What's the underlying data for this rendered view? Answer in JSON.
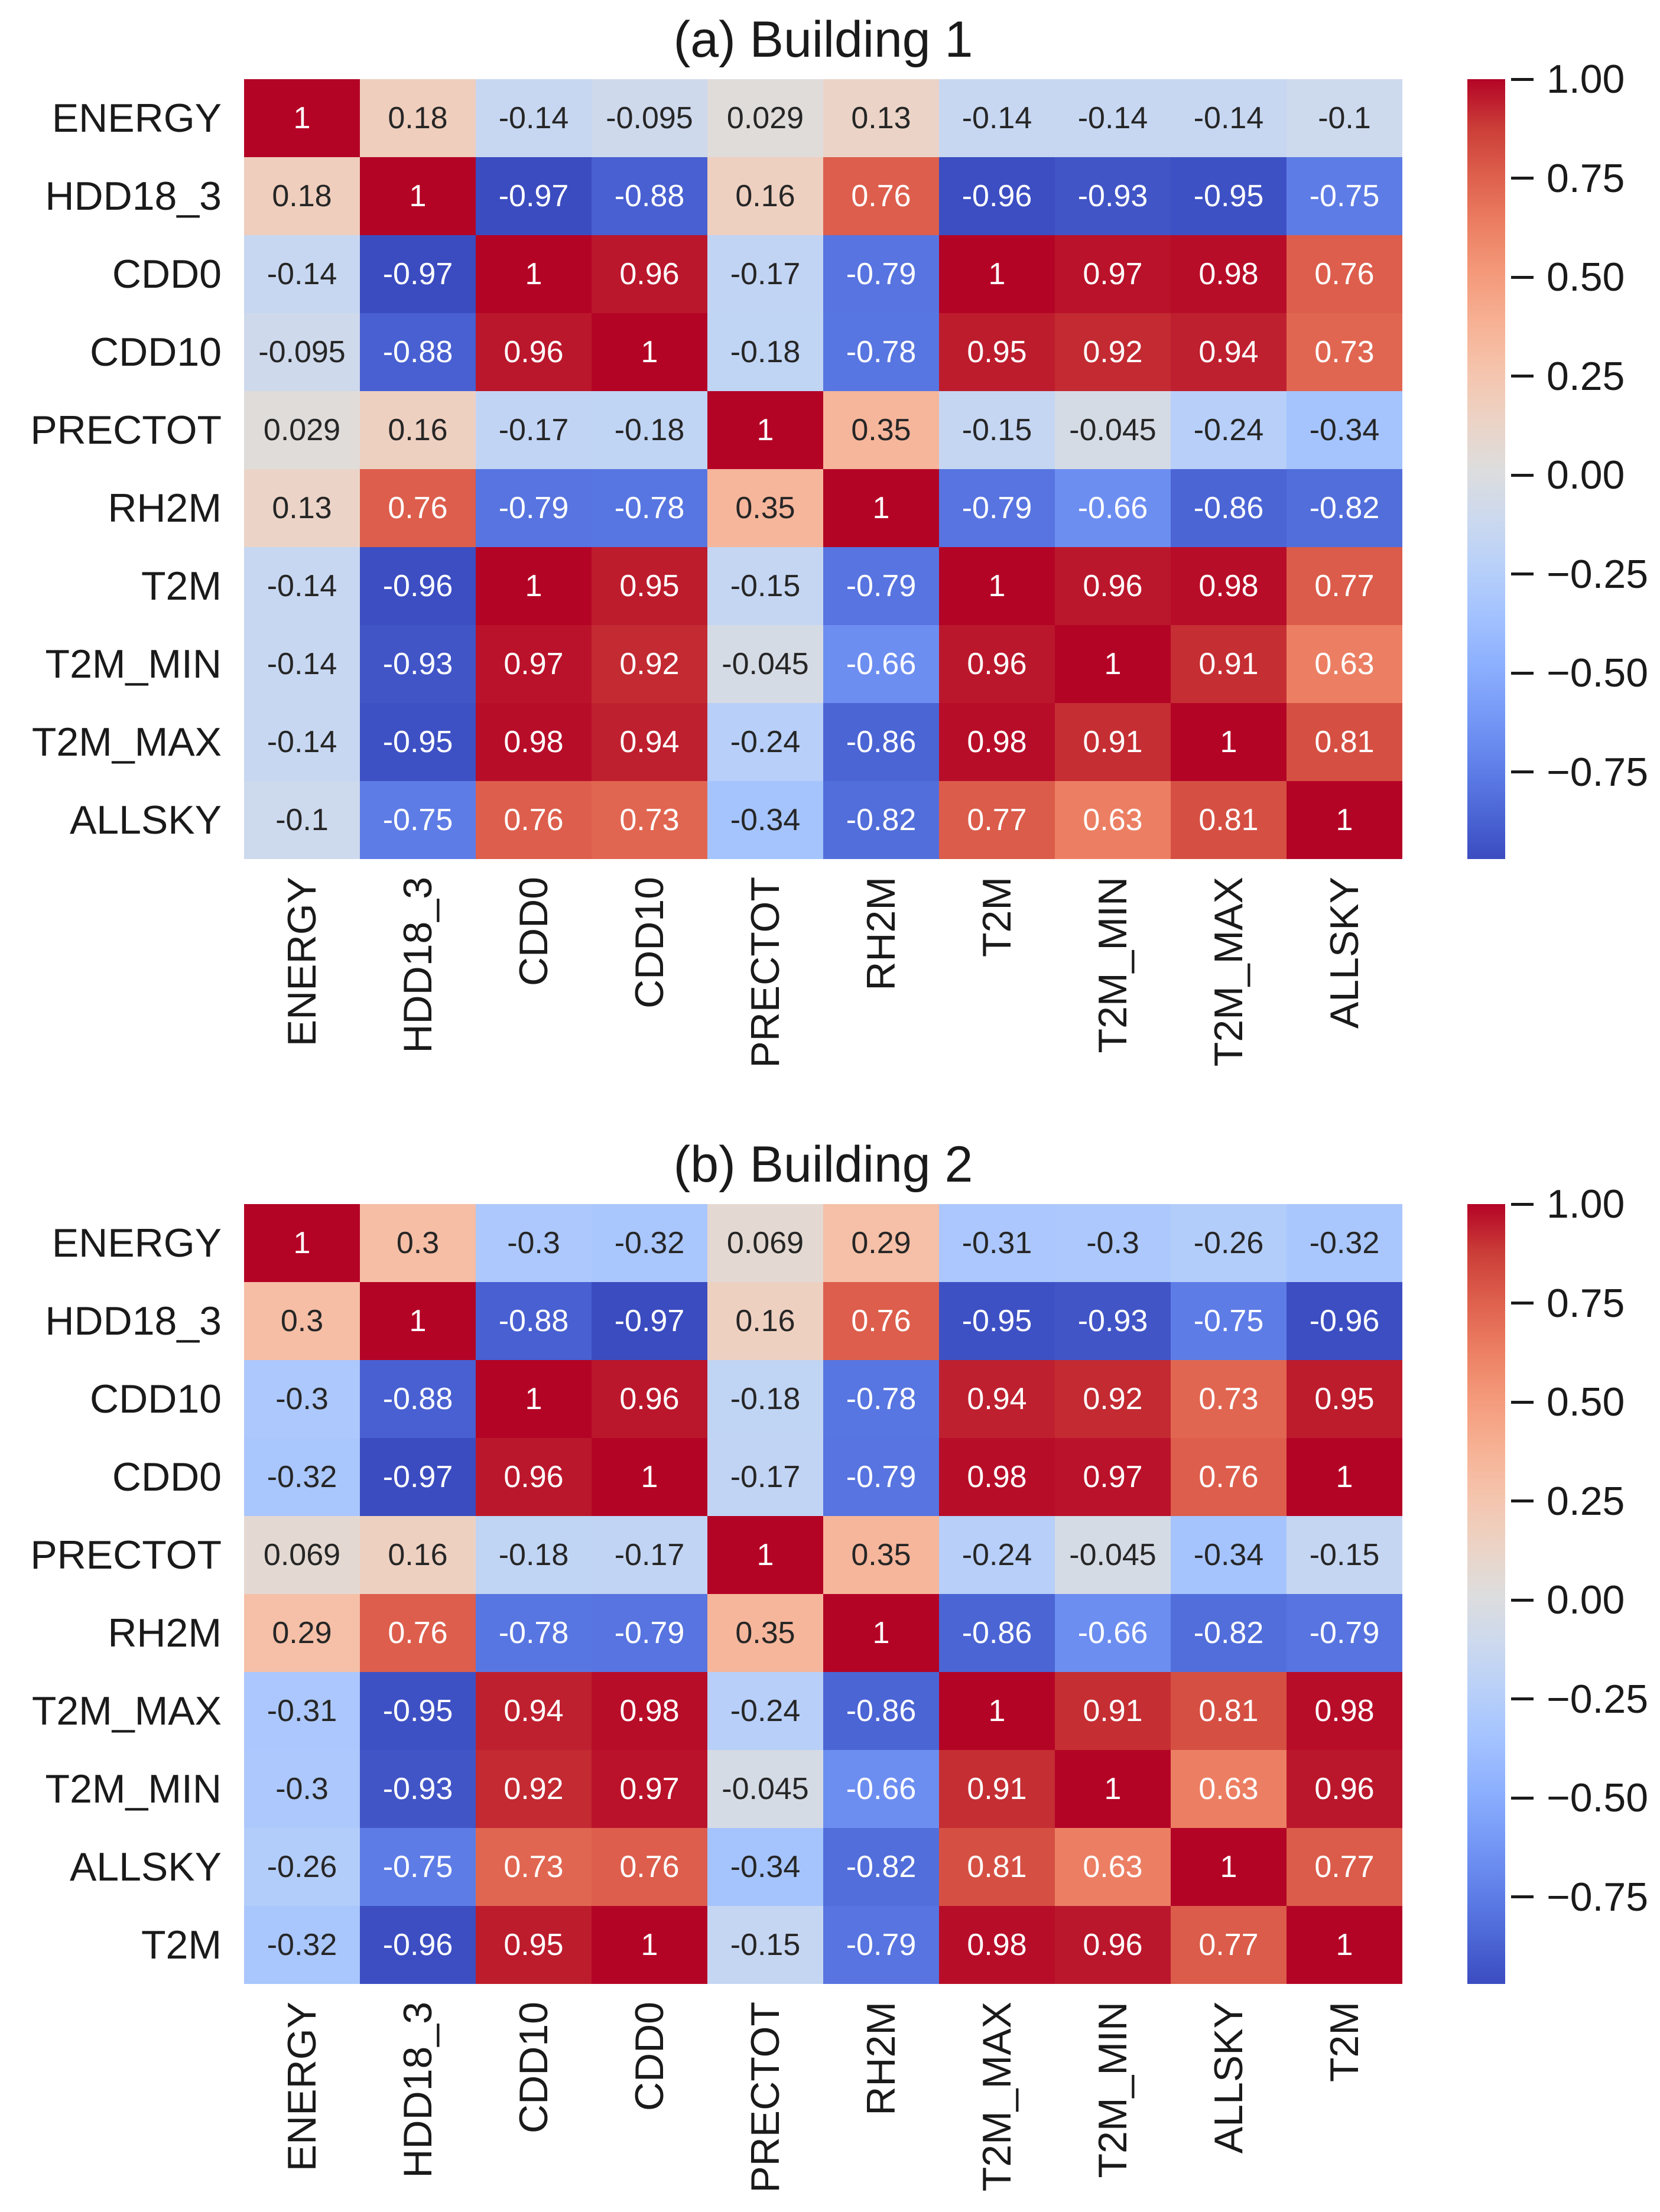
{
  "figure": {
    "background": "#ffffff",
    "text_color": "#1a1a1a",
    "max_color": "#b40426",
    "min_color": "#3b4cc0",
    "mid_color": "#dddddd"
  },
  "chart_data": [
    {
      "type": "heatmap",
      "title": "(a) Building 1",
      "x_tick_labels": [
        "ENERGY",
        "HDD18_3",
        "CDD0",
        "CDD10",
        "PRECTOT",
        "RH2M",
        "T2M",
        "T2M_MIN",
        "T2M_MAX",
        "ALLSKY"
      ],
      "y_tick_labels": [
        "ENERGY",
        "HDD18_3",
        "CDD0",
        "CDD10",
        "PRECTOT",
        "RH2M",
        "T2M",
        "T2M_MIN",
        "T2M_MAX",
        "ALLSKY"
      ],
      "matrix": [
        [
          1,
          0.18,
          -0.14,
          -0.095,
          0.029,
          0.13,
          -0.14,
          -0.14,
          -0.14,
          -0.1
        ],
        [
          0.18,
          1,
          -0.97,
          -0.88,
          0.16,
          0.76,
          -0.96,
          -0.93,
          -0.95,
          -0.75
        ],
        [
          -0.14,
          -0.97,
          1,
          0.96,
          -0.17,
          -0.79,
          1,
          0.97,
          0.98,
          0.76
        ],
        [
          -0.095,
          -0.88,
          0.96,
          1,
          -0.18,
          -0.78,
          0.95,
          0.92,
          0.94,
          0.73
        ],
        [
          0.029,
          0.16,
          -0.17,
          -0.18,
          1,
          0.35,
          -0.15,
          -0.045,
          -0.24,
          -0.34
        ],
        [
          0.13,
          0.76,
          -0.79,
          -0.78,
          0.35,
          1,
          -0.79,
          -0.66,
          -0.86,
          -0.82
        ],
        [
          -0.14,
          -0.96,
          1,
          0.95,
          -0.15,
          -0.79,
          1,
          0.96,
          0.98,
          0.77
        ],
        [
          -0.14,
          -0.93,
          0.97,
          0.92,
          -0.045,
          -0.66,
          0.96,
          1,
          0.91,
          0.63
        ],
        [
          -0.14,
          -0.95,
          0.98,
          0.94,
          -0.24,
          -0.86,
          0.98,
          0.91,
          1,
          0.81
        ],
        [
          -0.1,
          -0.75,
          0.76,
          0.73,
          -0.34,
          -0.82,
          0.77,
          0.63,
          0.81,
          1
        ]
      ],
      "colormap": "coolwarm",
      "vmin": -0.97,
      "vmax": 1.0,
      "annotation_format": ".2g",
      "x_tick_rotation": 90,
      "colorbar_position": "right",
      "colorbar_ticks": [
        1.0,
        0.75,
        0.5,
        0.25,
        0.0,
        -0.25,
        -0.5,
        -0.75
      ]
    },
    {
      "type": "heatmap",
      "title": "(b) Building 2",
      "x_tick_labels": [
        "ENERGY",
        "HDD18_3",
        "CDD10",
        "CDD0",
        "PRECTOT",
        "RH2M",
        "T2M_MAX",
        "T2M_MIN",
        "ALLSKY",
        "T2M"
      ],
      "y_tick_labels": [
        "ENERGY",
        "HDD18_3",
        "CDD10",
        "CDD0",
        "PRECTOT",
        "RH2M",
        "T2M_MAX",
        "T2M_MIN",
        "ALLSKY",
        "T2M"
      ],
      "matrix": [
        [
          1,
          0.3,
          -0.3,
          -0.32,
          0.069,
          0.29,
          -0.31,
          -0.3,
          -0.26,
          -0.32
        ],
        [
          0.3,
          1,
          -0.88,
          -0.97,
          0.16,
          0.76,
          -0.95,
          -0.93,
          -0.75,
          -0.96
        ],
        [
          -0.3,
          -0.88,
          1,
          0.96,
          -0.18,
          -0.78,
          0.94,
          0.92,
          0.73,
          0.95
        ],
        [
          -0.32,
          -0.97,
          0.96,
          1,
          -0.17,
          -0.79,
          0.98,
          0.97,
          0.76,
          1
        ],
        [
          0.069,
          0.16,
          -0.18,
          -0.17,
          1,
          0.35,
          -0.24,
          -0.045,
          -0.34,
          -0.15
        ],
        [
          0.29,
          0.76,
          -0.78,
          -0.79,
          0.35,
          1,
          -0.86,
          -0.66,
          -0.82,
          -0.79
        ],
        [
          -0.31,
          -0.95,
          0.94,
          0.98,
          -0.24,
          -0.86,
          1,
          0.91,
          0.81,
          0.98
        ],
        [
          -0.3,
          -0.93,
          0.92,
          0.97,
          -0.045,
          -0.66,
          0.91,
          1,
          0.63,
          0.96
        ],
        [
          -0.26,
          -0.75,
          0.73,
          0.76,
          -0.34,
          -0.82,
          0.81,
          0.63,
          1,
          0.77
        ],
        [
          -0.32,
          -0.96,
          0.95,
          1,
          -0.15,
          -0.79,
          0.98,
          0.96,
          0.77,
          1
        ]
      ],
      "colormap": "coolwarm",
      "vmin": -0.97,
      "vmax": 1.0,
      "annotation_format": ".2g",
      "x_tick_rotation": 90,
      "colorbar_position": "right",
      "colorbar_ticks": [
        1.0,
        0.75,
        0.5,
        0.25,
        0.0,
        -0.25,
        -0.5,
        -0.75
      ]
    }
  ]
}
